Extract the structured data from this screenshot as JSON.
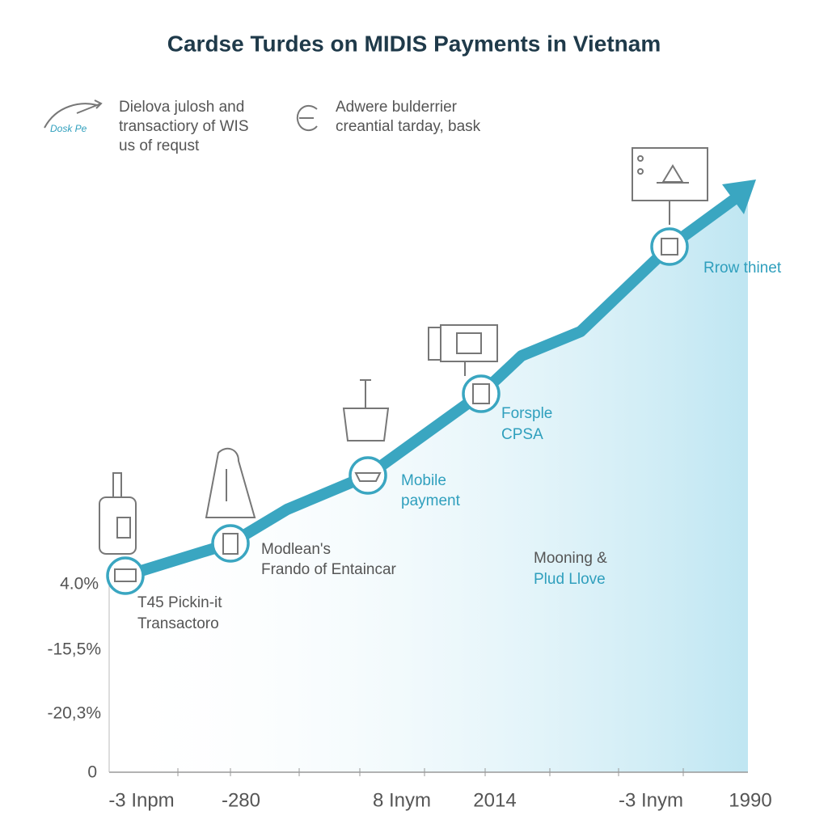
{
  "header": {
    "title": "Cardse Turdes on MIDIS Payments in Vietnam"
  },
  "legend": [
    {
      "icon_text": "Dosk Pe",
      "lines": [
        "Dielova julosh and",
        "transactiory of WIS",
        "us of requst"
      ]
    },
    {
      "lines": [
        "Adwere bulderrier",
        "creantial tarday, bask"
      ]
    }
  ],
  "y_axis_labels": [
    "4.0%",
    "-15,5%",
    "-20,3%",
    "0"
  ],
  "x_axis_labels": [
    "-3 Inpm",
    "-280",
    "8 Inym",
    "2014",
    "-3 Inym",
    "1990"
  ],
  "annotations": [
    {
      "lines": [
        "T45 Pickin-it",
        "Transactoro"
      ]
    },
    {
      "lines": [
        "Modlean's",
        "Frando of Entaincar"
      ]
    },
    {
      "lines": [
        "Mobile",
        "payment"
      ]
    },
    {
      "lines": [
        "Forsple",
        "CPSA"
      ]
    },
    {
      "lines": [
        "Mooning &",
        "Plud Llove"
      ]
    },
    {
      "lines": [
        "Rrow thinet"
      ]
    }
  ]
}
